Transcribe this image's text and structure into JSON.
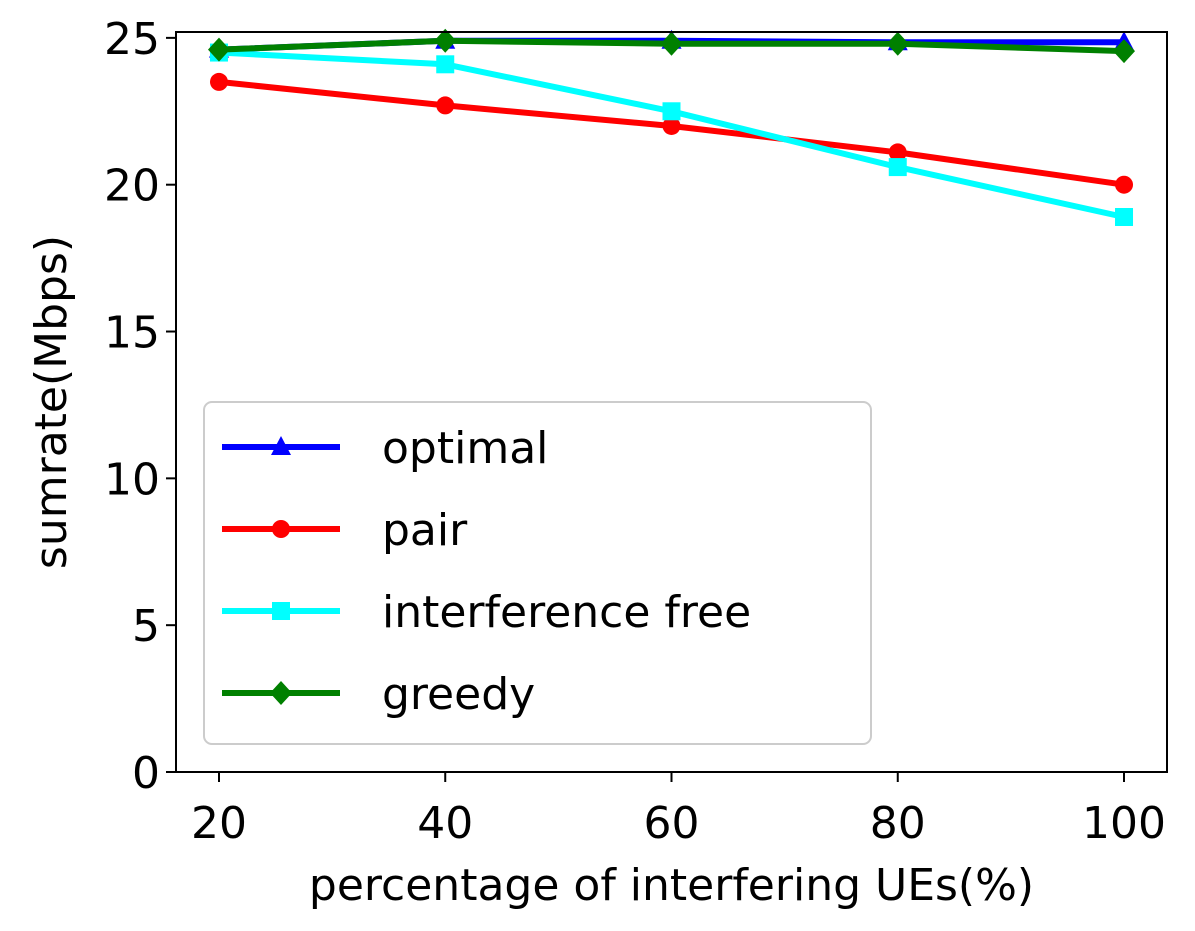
{
  "chart_data": {
    "type": "line",
    "xlabel": "percentage of interfering UEs(%)",
    "ylabel": "sumrate(Mbps)",
    "x": [
      20,
      40,
      60,
      80,
      100
    ],
    "xticks": [
      "20",
      "40",
      "60",
      "80",
      "100"
    ],
    "yticks": [
      "0",
      "5",
      "10",
      "15",
      "20",
      "25"
    ],
    "xlim": [
      16.2,
      103.8
    ],
    "ylim": [
      0,
      25.2
    ],
    "grid": false,
    "legend_position": "lower-left",
    "series": [
      {
        "name": "optimal",
        "color": "#0000ff",
        "marker": "triangle",
        "values": [
          24.6,
          24.9,
          24.9,
          24.85,
          24.85
        ]
      },
      {
        "name": "pair",
        "color": "#ff0000",
        "marker": "circle",
        "values": [
          23.5,
          22.7,
          22.0,
          21.1,
          20.0
        ]
      },
      {
        "name": "interference free",
        "color": "#00ffff",
        "marker": "square",
        "values": [
          24.5,
          24.1,
          22.5,
          20.6,
          18.9
        ]
      },
      {
        "name": "greedy",
        "color": "#008000",
        "marker": "diamond",
        "values": [
          24.6,
          24.9,
          24.8,
          24.8,
          24.55
        ]
      }
    ]
  }
}
